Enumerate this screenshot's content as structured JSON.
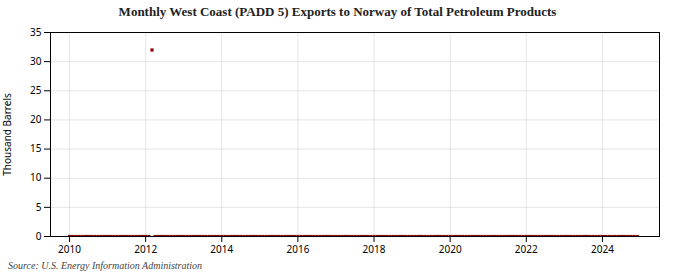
{
  "chart_data": {
    "type": "scatter",
    "title": "Monthly West Coast (PADD 5) Exports to Norway of Total Petroleum Products",
    "ylabel": "Thousand Barrels",
    "annotation": "Source: U.S. Energy Information Administration",
    "x": [
      2010.0,
      2010.083,
      2010.167,
      2010.25,
      2010.333,
      2010.417,
      2010.5,
      2010.583,
      2010.667,
      2010.75,
      2010.833,
      2010.917,
      2011.0,
      2011.083,
      2011.167,
      2011.25,
      2011.333,
      2011.417,
      2011.5,
      2011.583,
      2011.667,
      2011.75,
      2011.833,
      2011.917,
      2012.0,
      2012.083,
      2012.167,
      2012.25,
      2012.333,
      2012.417,
      2012.5,
      2012.583,
      2012.667,
      2012.75,
      2012.833,
      2012.917,
      2013.0,
      2013.083,
      2013.167,
      2013.25,
      2013.333,
      2013.417,
      2013.5,
      2013.583,
      2013.667,
      2013.75,
      2013.833,
      2013.917,
      2014.0,
      2014.083,
      2014.167,
      2014.25,
      2014.333,
      2014.417,
      2014.5,
      2014.583,
      2014.667,
      2014.75,
      2014.833,
      2014.917,
      2015.0,
      2015.083,
      2015.167,
      2015.25,
      2015.333,
      2015.417,
      2015.5,
      2015.583,
      2015.667,
      2015.75,
      2015.833,
      2015.917,
      2016.0,
      2016.083,
      2016.167,
      2016.25,
      2016.333,
      2016.417,
      2016.5,
      2016.583,
      2016.667,
      2016.75,
      2016.833,
      2016.917,
      2017.0,
      2017.083,
      2017.167,
      2017.25,
      2017.333,
      2017.417,
      2017.5,
      2017.583,
      2017.667,
      2017.75,
      2017.833,
      2017.917,
      2018.0,
      2018.083,
      2018.167,
      2018.25,
      2018.333,
      2018.417,
      2018.5,
      2018.583,
      2018.667,
      2018.75,
      2018.833,
      2018.917,
      2019.0,
      2019.083,
      2019.167,
      2019.25,
      2019.333,
      2019.417,
      2019.5,
      2019.583,
      2019.667,
      2019.75,
      2019.833,
      2019.917,
      2020.0,
      2020.083,
      2020.167,
      2020.25,
      2020.333,
      2020.417,
      2020.5,
      2020.583,
      2020.667,
      2020.75,
      2020.833,
      2020.917,
      2021.0,
      2021.083,
      2021.167,
      2021.25,
      2021.333,
      2021.417,
      2021.5,
      2021.583,
      2021.667,
      2021.75,
      2021.833,
      2021.917,
      2022.0,
      2022.083,
      2022.167,
      2022.25,
      2022.333,
      2022.417,
      2022.5,
      2022.583,
      2022.667,
      2022.75,
      2022.833,
      2022.917,
      2023.0,
      2023.083,
      2023.167,
      2023.25,
      2023.333,
      2023.417,
      2023.5,
      2023.583,
      2023.667,
      2023.75,
      2023.833,
      2023.917,
      2024.0,
      2024.083,
      2024.167,
      2024.25,
      2024.333,
      2024.417,
      2024.5,
      2024.583,
      2024.667,
      2024.75,
      2024.833,
      2024.917
    ],
    "values": [
      0,
      0,
      0,
      0,
      0,
      0,
      0,
      0,
      0,
      0,
      0,
      0,
      0,
      0,
      0,
      0,
      0,
      0,
      0,
      0,
      0,
      0,
      0,
      0,
      0,
      0,
      32,
      0,
      0,
      0,
      0,
      0,
      0,
      0,
      0,
      0,
      0,
      0,
      0,
      0,
      0,
      0,
      0,
      0,
      0,
      0,
      0,
      0,
      0,
      0,
      0,
      0,
      0,
      0,
      0,
      0,
      0,
      0,
      0,
      0,
      0,
      0,
      0,
      0,
      0,
      0,
      0,
      0,
      0,
      0,
      0,
      0,
      0,
      0,
      0,
      0,
      0,
      0,
      0,
      0,
      0,
      0,
      0,
      0,
      0,
      0,
      0,
      0,
      0,
      0,
      0,
      0,
      0,
      0,
      0,
      0,
      0,
      0,
      0,
      0,
      0,
      0,
      0,
      0,
      0,
      0,
      0,
      0,
      0,
      0,
      0,
      0,
      0,
      0,
      0,
      0,
      0,
      0,
      0,
      0,
      0,
      0,
      0,
      0,
      0,
      0,
      0,
      0,
      0,
      0,
      0,
      0,
      0,
      0,
      0,
      0,
      0,
      0,
      0,
      0,
      0,
      0,
      0,
      0,
      0,
      0,
      0,
      0,
      0,
      0,
      0,
      0,
      0,
      0,
      0,
      0,
      0,
      0,
      0,
      0,
      0,
      0,
      0,
      0,
      0,
      0,
      0,
      0,
      0,
      0,
      0,
      0,
      0,
      0,
      0,
      0,
      0,
      0,
      0,
      0
    ],
    "color": "#8b0000",
    "marker": "square",
    "xlim": [
      2009.5,
      2025.5
    ],
    "xticks": [
      2010,
      2012,
      2014,
      2016,
      2018,
      2020,
      2022,
      2024
    ],
    "ylim": [
      0,
      35
    ],
    "yticks": [
      0,
      5,
      10,
      15,
      20,
      25,
      30,
      35
    ],
    "grid": true
  }
}
